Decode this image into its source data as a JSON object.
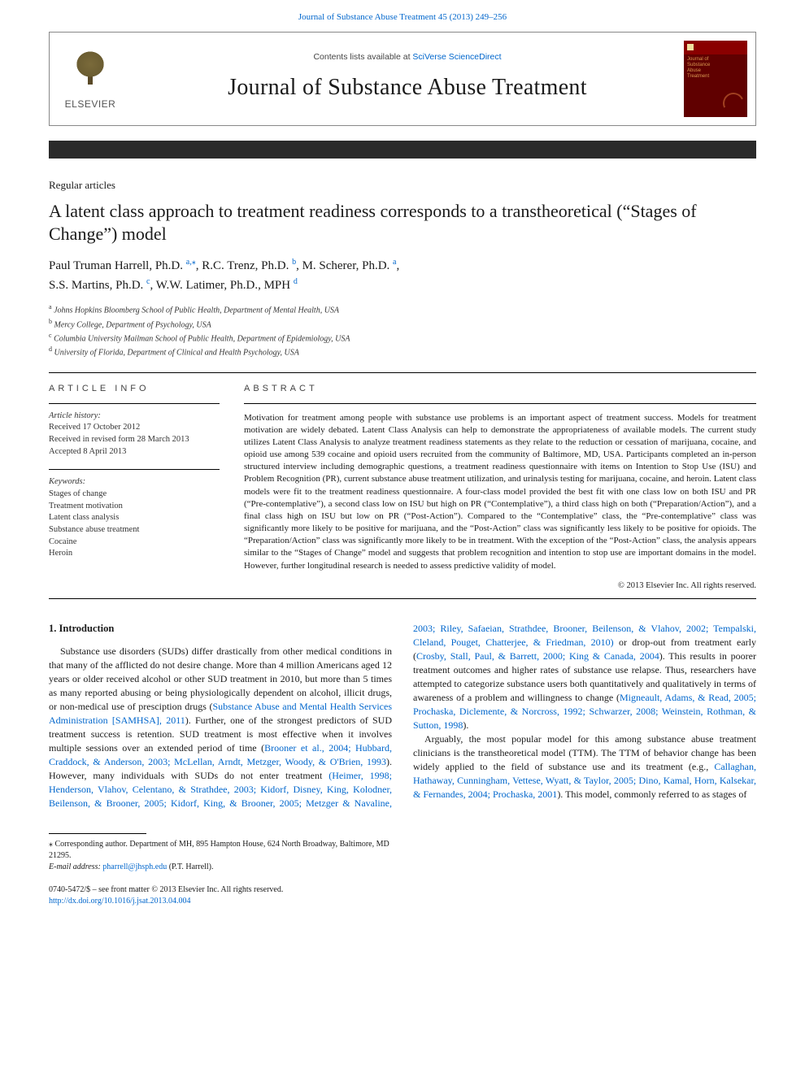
{
  "journalLink": {
    "prefix": "Journal of Substance Abuse Treatment 45 (2013) 249–256",
    "href_color": "#0066cc"
  },
  "masthead": {
    "contents_prefix": "Contents lists available at ",
    "contents_link": "SciVerse ScienceDirect",
    "journal_name": "Journal of Substance Abuse Treatment",
    "publisher_label": "ELSEVIER",
    "cover_text": "Journal of\nSubstance\nAbuse\nTreatment"
  },
  "article": {
    "type": "Regular articles",
    "title": "A latent class approach to treatment readiness corresponds to a transtheoretical (“Stages of Change”) model",
    "authors": [
      {
        "name": "Paul Truman Harrell, Ph.D.",
        "sup": "a,",
        "star": true
      },
      {
        "name": "R.C. Trenz, Ph.D.",
        "sup": "b"
      },
      {
        "name": "M. Scherer, Ph.D.",
        "sup": "a"
      },
      {
        "name": "S.S. Martins, Ph.D.",
        "sup": "c"
      },
      {
        "name": "W.W. Latimer, Ph.D., MPH",
        "sup": "d"
      }
    ],
    "affiliations": [
      {
        "sup": "a",
        "text": "Johns Hopkins Bloomberg School of Public Health, Department of Mental Health, USA"
      },
      {
        "sup": "b",
        "text": "Mercy College, Department of Psychology, USA"
      },
      {
        "sup": "c",
        "text": "Columbia University Mailman School of Public Health, Department of Epidemiology, USA"
      },
      {
        "sup": "d",
        "text": "University of Florida, Department of Clinical and Health Psychology, USA"
      }
    ]
  },
  "info": {
    "heading": "ARTICLE INFO",
    "history_label": "Article history:",
    "history": [
      "Received 17 October 2012",
      "Received in revised form 28 March 2013",
      "Accepted 8 April 2013"
    ],
    "keywords_label": "Keywords:",
    "keywords": [
      "Stages of change",
      "Treatment motivation",
      "Latent class analysis",
      "Substance abuse treatment",
      "Cocaine",
      "Heroin"
    ]
  },
  "abstract": {
    "heading": "ABSTRACT",
    "text": "Motivation for treatment among people with substance use problems is an important aspect of treatment success. Models for treatment motivation are widely debated. Latent Class Analysis can help to demonstrate the appropriateness of available models. The current study utilizes Latent Class Analysis to analyze treatment readiness statements as they relate to the reduction or cessation of marijuana, cocaine, and opioid use among 539 cocaine and opioid users recruited from the community of Baltimore, MD, USA. Participants completed an in-person structured interview including demographic questions, a treatment readiness questionnaire with items on Intention to Stop Use (ISU) and Problem Recognition (PR), current substance abuse treatment utilization, and urinalysis testing for marijuana, cocaine, and heroin. Latent class models were fit to the treatment readiness questionnaire. A four-class model provided the best fit with one class low on both ISU and PR (“Pre-contemplative”), a second class low on ISU but high on PR (“Contemplative”), a third class high on both (“Preparation/Action”), and a final class high on ISU but low on PR (“Post-Action”). Compared to the “Contemplative” class, the “Pre-contemplative” class was significantly more likely to be positive for marijuana, and the “Post-Action” class was significantly less likely to be positive for opioids. The “Preparation/Action” class was significantly more likely to be in treatment. With the exception of the “Post-Action” class, the analysis appears similar to the “Stages of Change” model and suggests that problem recognition and intention to stop use are important domains in the model. However, further longitudinal research is needed to assess predictive validity of model.",
    "copyright": "© 2013 Elsevier Inc. All rights reserved."
  },
  "body": {
    "intro_heading": "1. Introduction",
    "para1_pre": "Substance use disorders (SUDs) differ drastically from other medical conditions in that many of the afflicted do not desire change. More than 4 million Americans aged 12 years or older received alcohol or other SUD treatment in 2010, but more than 5 times as many reported abusing or being physiologically dependent on alcohol, illicit drugs, or non-medical use of presciption drugs (",
    "para1_link1": "Substance Abuse and Mental Health Services Administration [SAMHSA], 2011",
    "para1_mid1": "). Further, one of the strongest predictors of SUD treatment success is retention. SUD treatment is most effective when it involves multiple sessions over an extended period of time (",
    "para1_link2": "Brooner et al., 2004; Hubbard, Craddock, & Anderson, 2003; McLellan, Arndt, Metzger, Woody, & O'Brien, 1993",
    "para1_mid2": "). However, many individuals with SUDs do not enter treatment ",
    "para1_link3": "(Heimer, 1998; Henderson, Vlahov, Celentano, & Strathdee, 2003; Kidorf, Disney, King, Kolodner, Beilenson, & Brooner, 2005; Kidorf, King, & Brooner, 2005; Metzger & Navaline, 2003; Riley, Safaeian, Strathdee, Brooner, Beilenson, & Vlahov, 2002; Tempalski, Cleland, Pouget, Chatterjee, & Friedman, 2010)",
    "para1_mid3": " or drop-out from treatment early (",
    "para1_link4": "Crosby, Stall, Paul, & Barrett, 2000; King & Canada, 2004",
    "para1_mid4": "). This results in poorer treatment outcomes and higher rates of substance use relapse. Thus, researchers have attempted to categorize substance users both quantitatively and qualitatively in terms of awareness of a problem and willingness to change (",
    "para1_link5": "Migneault, Adams, & Read, 2005; Prochaska, Diclemente, & Norcross, 1992; Schwarzer, 2008; Weinstein, Rothman, & Sutton, 1998",
    "para1_post": ").",
    "para2_pre": "Arguably, the most popular model for this among substance abuse treatment clinicians is the transtheoretical model (TTM). The TTM of behavior change has been widely applied to the field of substance use and its treatment (e.g., ",
    "para2_link1": "Callaghan, Hathaway, Cunningham, Vettese, Wyatt, & Taylor, 2005; Dino, Kamal, Horn, Kalsekar, & Fernandes, 2004; Prochaska, 2001",
    "para2_post": "). This model, commonly referred to as stages of"
  },
  "footer": {
    "corresponding_label": "⁎ Corresponding author. Department of MH, 895 Hampton House, 624 North Broadway, Baltimore, MD 21295.",
    "email_label": "E-mail address:",
    "email": "pharrell@jhsph.edu",
    "email_name": "(P.T. Harrell).",
    "issn": "0740-5472/$ – see front matter © 2013 Elsevier Inc. All rights reserved.",
    "doi": "http://dx.doi.org/10.1016/j.jsat.2013.04.004"
  },
  "colors": {
    "link": "#0066cc",
    "text": "#1a1a1a",
    "darkbar": "#2a2a2a",
    "cover_red": "#8a0000"
  }
}
